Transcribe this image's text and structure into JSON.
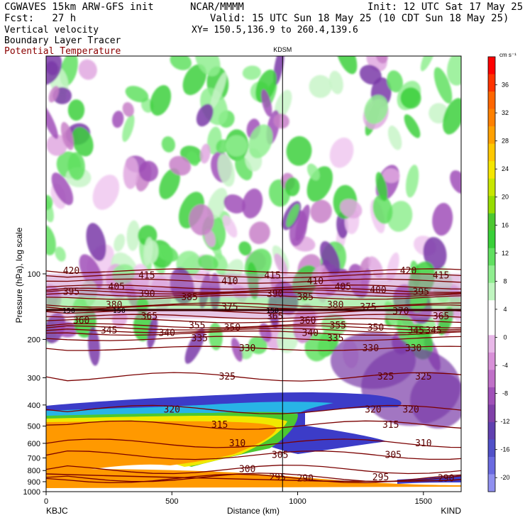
{
  "header": {
    "model": "CGWAVES 15km ARW-GFS init",
    "fcst": "Fcst:   27 h",
    "org": "NCAR/MMMM",
    "init": "Init: 12 UTC Sat 17 May 25",
    "valid": "Valid: 15 UTC Sun 18 May 25 (10 CDT Sun 18 May 25)",
    "field1": "Vertical velocity",
    "field2": "Boundary Layer Tracer",
    "field3": "Potential Temperature",
    "xy": "XY= 150.5,136.9 to 260.4,139.6"
  },
  "colors": {
    "theta": "#7a0000",
    "field3_text": "#8b0000",
    "orange": "#ff9900"
  },
  "chart_data": {
    "type": "heatmap",
    "title": "",
    "xlabel": "Distance (km)",
    "ylabel": "Pressure (hPa), log scale",
    "xlim": [
      0,
      1650
    ],
    "x_ticks": [
      {
        "value": 0,
        "label": "0"
      },
      {
        "value": 500,
        "label": "500"
      },
      {
        "value": 1000,
        "label": "1000"
      },
      {
        "value": 1500,
        "label": "1500"
      }
    ],
    "y_scale": "log",
    "ylim": [
      1000,
      10
    ],
    "y_ticks": [
      100,
      200,
      300,
      400,
      500,
      600,
      700,
      800,
      900,
      1000
    ],
    "y_tick_labels": [
      "100",
      "200",
      "300",
      "400",
      "500",
      "600",
      "700",
      "800",
      "900",
      "1000"
    ],
    "left_station": "KBJC",
    "right_station": "KIND",
    "marker": {
      "label": "KDSM",
      "x": 940
    },
    "colorbar": {
      "unit": "cm s⁻¹",
      "ticks": [
        "36",
        "32",
        "28",
        "24",
        "20",
        "16",
        "12",
        "8",
        "4",
        "0",
        "-4",
        "-8",
        "-12",
        "-16",
        "-20"
      ],
      "values": [
        36,
        32,
        28,
        24,
        20,
        16,
        12,
        8,
        4,
        0,
        -4,
        -8,
        -12,
        -16,
        -20
      ],
      "colors": [
        "#ff0000",
        "#ff3300",
        "#ff6600",
        "#ff8000",
        "#ffa000",
        "#ffc800",
        "#f5e600",
        "#c8e600",
        "#96dc00",
        "#4cc830",
        "#38d038",
        "#60e060",
        "#90ee90",
        "#c0f5c0",
        "#ffffff",
        "#ffffff",
        "#e8b8e8",
        "#d890d8",
        "#c070c8",
        "#a050b8",
        "#8040a8",
        "#6040b0",
        "#5050c8",
        "#6a6ae0",
        "#9090f0"
      ]
    },
    "theta_contours": [
      {
        "label": "420",
        "p": 97,
        "labels_x": [
          100,
          1440
        ]
      },
      {
        "label": "415",
        "p": 102,
        "labels_x": [
          400,
          900,
          1570
        ]
      },
      {
        "label": "410",
        "p": 108,
        "labels_x": [
          730,
          1070
        ]
      },
      {
        "label": "405",
        "p": 115,
        "labels_x": [
          280,
          1180
        ]
      },
      {
        "label": "400",
        "p": 119,
        "labels_x": [
          1320
        ]
      },
      {
        "label": "395",
        "p": 121,
        "labels_x": [
          100,
          1490
        ]
      },
      {
        "label": "390",
        "p": 124,
        "labels_x": [
          400,
          910
        ]
      },
      {
        "label": "385",
        "p": 128,
        "labels_x": [
          570,
          1030
        ]
      },
      {
        "label": "380",
        "p": 139,
        "labels_x": [
          270,
          1150
        ]
      },
      {
        "label": "375",
        "p": 142,
        "labels_x": [
          730,
          1280
        ]
      },
      {
        "label": "370",
        "p": 149,
        "labels_x": [
          1410
        ]
      },
      {
        "label": "365",
        "p": 157,
        "labels_x": [
          410,
          910,
          1570
        ]
      },
      {
        "label": "360",
        "p": 164,
        "labels_x": [
          140,
          1040
        ]
      },
      {
        "label": "355",
        "p": 173,
        "labels_x": [
          600,
          1160
        ]
      },
      {
        "label": "350",
        "p": 177,
        "labels_x": [
          740,
          1310
        ]
      },
      {
        "label": "345",
        "p": 182,
        "labels_x": [
          250,
          1470,
          1540
        ]
      },
      {
        "label": "340",
        "p": 187,
        "labels_x": [
          480,
          1050
        ]
      },
      {
        "label": "335",
        "p": 198,
        "labels_x": [
          610,
          1150
        ]
      },
      {
        "label": "330",
        "p": 220,
        "labels_x": [
          800,
          1290,
          1460
        ]
      },
      {
        "label": "325",
        "p": 297,
        "labels_x": [
          720,
          1350,
          1500
        ]
      },
      {
        "label": "320",
        "p": 420,
        "labels_x": [
          500,
          1300,
          1450
        ]
      },
      {
        "label": "315",
        "p": 495,
        "labels_x": [
          690,
          1370
        ]
      },
      {
        "label": "310",
        "p": 600,
        "labels_x": [
          760,
          1500
        ]
      },
      {
        "label": "305",
        "p": 680,
        "labels_x": [
          930,
          1380
        ]
      },
      {
        "label": "300",
        "p": 790,
        "labels_x": [
          800
        ]
      },
      {
        "label": "295",
        "p": 860,
        "labels_x": [
          920,
          1330
        ]
      },
      {
        "label": "290",
        "p": 870,
        "labels_x": [
          1030,
          1590
        ]
      }
    ],
    "tropopause_label": {
      "label": "150",
      "x": [
        90,
        290,
        900
      ]
    }
  }
}
